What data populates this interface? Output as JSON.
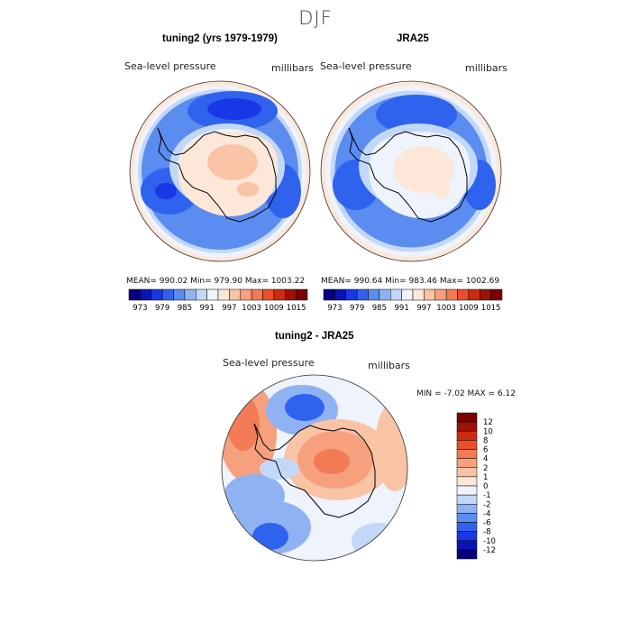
{
  "page_title": "DJF",
  "colors": {
    "ramp": [
      "#08007f",
      "#0a14b4",
      "#1838e6",
      "#2f63ee",
      "#5b8cf0",
      "#8fb2f3",
      "#c3d8f8",
      "#eef3fc",
      "#fde7d9",
      "#f9c3a6",
      "#f6a07d",
      "#f27b55",
      "#ea4e2b",
      "#cc2b12",
      "#9c1204",
      "#7c0000"
    ],
    "coast": "#000000",
    "rim": "#333333"
  },
  "chart_data": [
    {
      "id": "left",
      "type": "heatmap",
      "title": "tuning2 (yrs 1979-1979)",
      "variable_label": "Sea-level pressure",
      "units_label": "millibars",
      "stats": "MEAN= 990.02   Min= 979.90   Max= 1003.22",
      "colorbar": {
        "orientation": "horizontal",
        "tick_labels": [
          "973",
          "979",
          "985",
          "991",
          "997",
          "1003",
          "1009",
          "1015"
        ],
        "levels": [
          970,
          973,
          976,
          979,
          982,
          985,
          988,
          991,
          994,
          997,
          1000,
          1003,
          1006,
          1009,
          1012,
          1015,
          1018
        ]
      }
    },
    {
      "id": "right",
      "type": "heatmap",
      "title": "JRA25",
      "variable_label": "Sea-level pressure",
      "units_label": "millibars",
      "stats": "MEAN= 990.64   Min= 983.46   Max= 1002.69",
      "colorbar": {
        "orientation": "horizontal",
        "tick_labels": [
          "973",
          "979",
          "985",
          "991",
          "997",
          "1003",
          "1009",
          "1015"
        ],
        "levels": [
          970,
          973,
          976,
          979,
          982,
          985,
          988,
          991,
          994,
          997,
          1000,
          1003,
          1006,
          1009,
          1012,
          1015,
          1018
        ]
      }
    },
    {
      "id": "diff",
      "type": "heatmap",
      "title": "tuning2 - JRA25",
      "variable_label": "Sea-level pressure",
      "units_label": "millibars",
      "stats": "MIN =   -7.02  MAX =    6.12",
      "colorbar": {
        "orientation": "vertical",
        "tick_labels": [
          "12",
          "10",
          "8",
          "6",
          "4",
          "2",
          "1",
          "0",
          "-1",
          "-2",
          "-4",
          "-6",
          "-8",
          "-10",
          "-12"
        ],
        "levels": [
          -12,
          -10,
          -8,
          -6,
          -4,
          -2,
          -1,
          0,
          1,
          2,
          4,
          6,
          8,
          10,
          12
        ]
      }
    }
  ]
}
